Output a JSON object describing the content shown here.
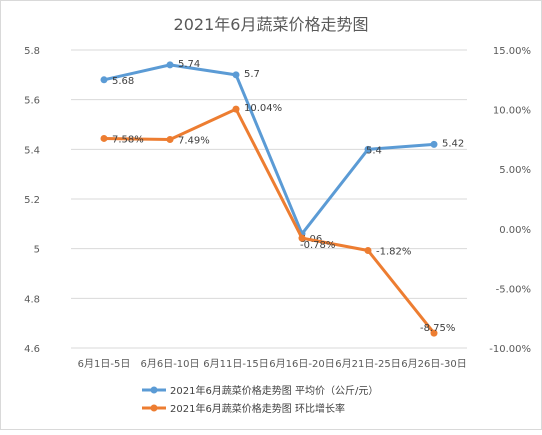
{
  "chart_data": {
    "type": "line",
    "title": "2021年6月蔬菜价格走势图",
    "categories": [
      "6月1日-5日",
      "6月6日-10日",
      "6月11日-15日",
      "6月16日-20日",
      "6月21日-25日",
      "6月26日-30日"
    ],
    "series": [
      {
        "name": "2021年6月蔬菜价格走势图 平均价（公斤/元）",
        "axis": "left",
        "color": "#5B9BD5",
        "values": [
          5.68,
          5.74,
          5.7,
          5.06,
          5.4,
          5.42
        ],
        "labels": [
          "5.68",
          "5.74",
          "5.7",
          "5.06",
          "5.4",
          "5.42"
        ]
      },
      {
        "name": "2021年6月蔬菜价格走势图 环比增长率",
        "axis": "right",
        "color": "#ED7D31",
        "values": [
          7.58,
          7.49,
          10.04,
          -0.78,
          -1.82,
          -8.75
        ],
        "labels": [
          "7.58%",
          "7.49%",
          "10.04%",
          "-0.78%",
          "-1.82%",
          "-8.75%"
        ]
      }
    ],
    "y_left": {
      "min": 4.6,
      "max": 5.8,
      "ticks": [
        5.8,
        5.6,
        5.4,
        5.2,
        5,
        4.8,
        4.6
      ],
      "tick_labels": [
        "5.8",
        "5.6",
        "5.4",
        "5.2",
        "5",
        "4.8",
        "4.6"
      ]
    },
    "y_right": {
      "min": -10,
      "max": 15,
      "ticks": [
        15,
        10,
        5,
        0,
        -5,
        -10
      ],
      "tick_labels": [
        "15.00%",
        "10.00%",
        "5.00%",
        "0.00%",
        "-5.00%",
        "-10.00%"
      ]
    },
    "grid": true,
    "legend_position": "bottom"
  }
}
